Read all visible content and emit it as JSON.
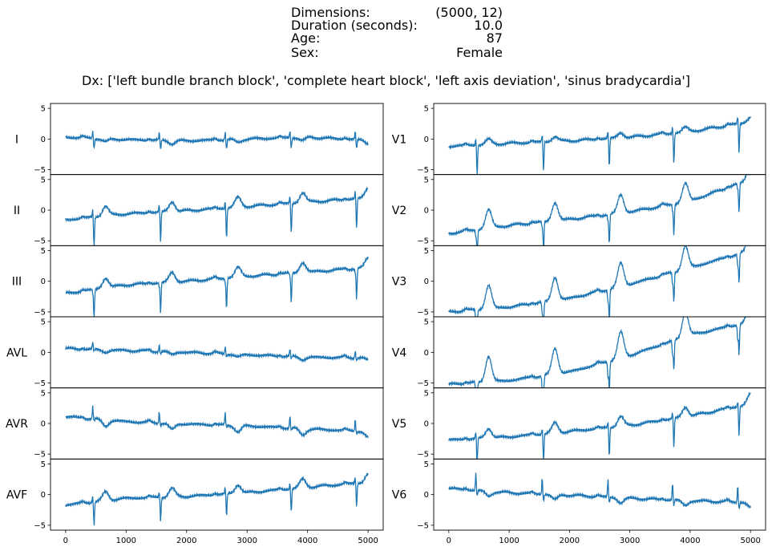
{
  "header": {
    "rows": [
      {
        "key": "Dimensions:",
        "value": "(5000, 12)"
      },
      {
        "key": "Duration (seconds):",
        "value": "10.0"
      },
      {
        "key": "Age:",
        "value": "87"
      },
      {
        "key": "Sex:",
        "value": "Female"
      }
    ],
    "dx": "Dx: ['left bundle branch block', 'complete heart block', 'left axis deviation', 'sinus bradycardia']"
  },
  "chart_data": {
    "type": "line",
    "line_color": "#1f77b4",
    "x_ticks": [
      0,
      1000,
      2000,
      3000,
      4000,
      5000
    ],
    "y_ticks": [
      -5,
      0,
      5
    ],
    "xlim": [
      -250,
      5250
    ],
    "ylim": [
      -5.8,
      5.8
    ],
    "beats": [
      460,
      1560,
      2650,
      3720,
      4800
    ],
    "left_column": [
      {
        "lead": "I",
        "baseline": [
          0.3,
          -0.1,
          -0.3,
          0.0,
          0.3,
          -0.2
        ],
        "qrs": [
          1.2,
          -1.6
        ],
        "t": -0.5
      },
      {
        "lead": "II",
        "baseline": [
          -1.6,
          -0.6,
          -0.1,
          0.6,
          1.3,
          2.0
        ],
        "qrs": [
          1.2,
          -5.0
        ],
        "t": 1.6
      },
      {
        "lead": "III",
        "baseline": [
          -2.0,
          -0.6,
          0.0,
          0.8,
          1.5,
          2.2
        ],
        "qrs": [
          -0.6,
          -5.0
        ],
        "t": 1.6
      },
      {
        "lead": "AVL",
        "baseline": [
          0.6,
          0.3,
          0.0,
          -0.4,
          -0.8,
          -0.9
        ],
        "qrs": [
          1.2,
          -0.4
        ],
        "t": -0.4
      },
      {
        "lead": "AVR",
        "baseline": [
          1.1,
          0.3,
          -0.1,
          -0.4,
          -0.9,
          -1.3
        ],
        "qrs": [
          2.0,
          -0.4
        ],
        "t": -1.0
      },
      {
        "lead": "AVF",
        "baseline": [
          -1.7,
          -0.6,
          -0.3,
          0.3,
          1.2,
          2.0
        ],
        "qrs": [
          1.0,
          -3.8
        ],
        "t": 1.4
      }
    ],
    "right_column": [
      {
        "lead": "V1",
        "baseline": [
          -1.2,
          -0.7,
          -0.3,
          0.3,
          1.2,
          2.8
        ],
        "qrs": [
          1.2,
          -4.8
        ],
        "t": 0.8
      },
      {
        "lead": "V2",
        "baseline": [
          -3.8,
          -2.5,
          -1.5,
          -0.3,
          1.5,
          5.0
        ],
        "qrs": [
          -1.0,
          -5.0
        ],
        "t": 3.0
      },
      {
        "lead": "V3",
        "baseline": [
          -5.0,
          -4.2,
          -2.8,
          -0.5,
          2.2,
          5.0
        ],
        "qrs": [
          -2.0,
          -5.0
        ],
        "t": 3.8
      },
      {
        "lead": "V4",
        "baseline": [
          -5.2,
          -4.6,
          -3.2,
          -0.5,
          2.8,
          5.0
        ],
        "qrs": [
          -2.5,
          -5.0
        ],
        "t": 4.2
      },
      {
        "lead": "V5",
        "baseline": [
          -2.7,
          -2.2,
          -1.3,
          -0.3,
          1.2,
          3.2
        ],
        "qrs": [
          1.0,
          -4.8
        ],
        "t": 1.6
      },
      {
        "lead": "V6",
        "baseline": [
          1.0,
          0.3,
          -0.1,
          -0.6,
          -1.0,
          -1.3
        ],
        "qrs": [
          2.8,
          -1.0
        ],
        "t": -0.8
      }
    ]
  }
}
